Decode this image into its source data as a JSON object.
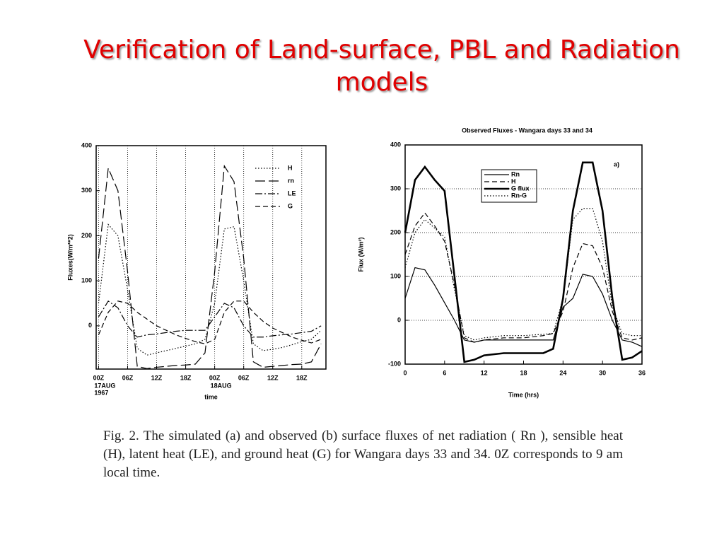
{
  "slide_title": "Verification of Land-surface, PBL and Radiation models",
  "caption": "Fig. 2. The simulated (a) and observed (b) surface fluxes of net radiation ( Rn ), sensible heat (H), latent heat (LE), and ground heat (G) for Wangara days 33 and 34. 0Z corresponds to 9 am local time.",
  "chart_data": [
    {
      "type": "line",
      "xlabel": "time",
      "ylabel": "Fluxes(W/m**2)",
      "x": [
        0,
        2,
        4,
        6,
        8,
        10,
        12,
        14,
        16,
        18,
        20,
        22,
        24,
        26,
        28,
        30,
        32,
        34,
        36,
        38,
        40,
        42,
        44,
        46
      ],
      "series": [
        {
          "name": "H",
          "color": "#000000",
          "style": "dotted",
          "values": [
            50,
            225,
            200,
            80,
            -50,
            -65,
            -60,
            -55,
            -50,
            -45,
            -40,
            -30,
            50,
            215,
            220,
            100,
            -40,
            -55,
            -52,
            -48,
            -42,
            -35,
            -30,
            -10
          ]
        },
        {
          "name": "rn",
          "color": "#000000",
          "style": "long-dash",
          "values": [
            150,
            350,
            300,
            120,
            -90,
            -95,
            -92,
            -90,
            -88,
            -87,
            -85,
            -60,
            120,
            355,
            320,
            150,
            -80,
            -92,
            -90,
            -88,
            -86,
            -85,
            -80,
            -40
          ]
        },
        {
          "name": "LE",
          "color": "#000000",
          "style": "dash-dot",
          "values": [
            20,
            55,
            40,
            0,
            -25,
            -20,
            -18,
            -15,
            -12,
            -10,
            -10,
            -10,
            20,
            50,
            40,
            0,
            -25,
            -25,
            -22,
            -20,
            -18,
            -15,
            -12,
            0
          ]
        },
        {
          "name": "G",
          "color": "#000000",
          "style": "dashed",
          "values": [
            -20,
            30,
            55,
            50,
            30,
            15,
            0,
            -10,
            -20,
            -28,
            -35,
            -40,
            -30,
            30,
            55,
            55,
            30,
            10,
            -5,
            -15,
            -25,
            -32,
            -38,
            -30
          ]
        }
      ],
      "xlim": [
        -0.5,
        47
      ],
      "ylim": [
        -96,
        400
      ],
      "xticks": [
        {
          "value": 0,
          "label": "00Z"
        },
        {
          "value": 6,
          "label": "06Z"
        },
        {
          "value": 12,
          "label": "12Z"
        },
        {
          "value": 18,
          "label": "18Z"
        },
        {
          "value": 24,
          "label": "00Z"
        },
        {
          "value": 30,
          "label": "06Z"
        },
        {
          "value": 36,
          "label": "12Z"
        },
        {
          "value": 42,
          "label": "18Z"
        }
      ],
      "yticks": [
        0,
        100,
        200,
        300,
        400
      ],
      "date_labels": [
        {
          "value": 0,
          "lines": [
            "17AUG",
            "1967"
          ]
        },
        {
          "value": 24,
          "lines": [
            "18AUG"
          ]
        }
      ],
      "grid": "x",
      "legend": "top-right"
    },
    {
      "type": "line",
      "title": "Observed Fluxes - Wangara days 33 and 34",
      "xlabel": "Time (hrs)",
      "ylabel": "Flux (W/m²)",
      "annotation": "a)",
      "x": [
        0,
        1.5,
        3,
        4.5,
        6,
        7.5,
        9,
        10.5,
        12,
        15,
        18,
        21,
        22.5,
        24,
        25.5,
        27,
        28.5,
        30,
        31.5,
        33,
        34.5,
        36
      ],
      "series": [
        {
          "name": "Rn",
          "color": "#000000",
          "style": "solid",
          "values": [
            50,
            120,
            115,
            80,
            40,
            0,
            -45,
            -50,
            -45,
            -45,
            -45,
            -45,
            -45,
            30,
            50,
            105,
            100,
            60,
            0,
            -45,
            -50,
            -60
          ]
        },
        {
          "name": "H",
          "color": "#000000",
          "style": "dashed",
          "values": [
            150,
            215,
            245,
            215,
            180,
            80,
            -40,
            -50,
            -45,
            -40,
            -40,
            -35,
            -30,
            20,
            120,
            175,
            170,
            120,
            20,
            -40,
            -45,
            -40
          ]
        },
        {
          "name": "G  flux",
          "color": "#000000",
          "style": "thick",
          "values": [
            200,
            320,
            350,
            320,
            295,
            100,
            -95,
            -90,
            -80,
            -75,
            -75,
            -75,
            -65,
            50,
            250,
            360,
            360,
            250,
            50,
            -90,
            -85,
            -70
          ]
        },
        {
          "name": "Rn-G",
          "color": "#000000",
          "style": "dotted",
          "values": [
            120,
            200,
            230,
            210,
            190,
            70,
            -35,
            -45,
            -40,
            -35,
            -35,
            -32,
            -30,
            50,
            230,
            255,
            255,
            180,
            30,
            -30,
            -35,
            -35
          ]
        }
      ],
      "xlim": [
        0,
        36
      ],
      "ylim": [
        -100,
        400
      ],
      "xticks": [
        0,
        6,
        12,
        18,
        24,
        30,
        36
      ],
      "yticks": [
        -100,
        0,
        100,
        200,
        300,
        400
      ],
      "grid": "y",
      "legend": "top"
    }
  ]
}
